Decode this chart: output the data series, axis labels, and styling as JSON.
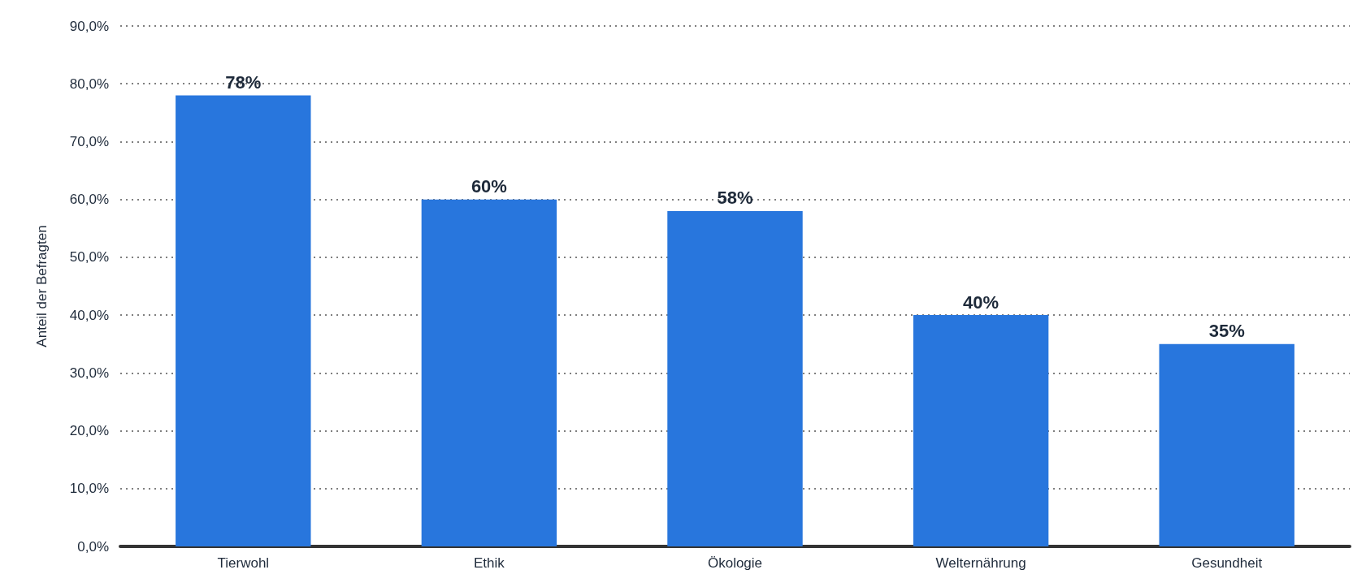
{
  "chart_data": {
    "type": "bar",
    "ylabel": "Anteil der Befragten",
    "categories": [
      "Tierwohl",
      "Ethik",
      "Ökologie",
      "Welternährung",
      "Gesundheit"
    ],
    "values": [
      78,
      60,
      58,
      40,
      35
    ],
    "value_labels": [
      "78%",
      "60%",
      "58%",
      "40%",
      "35%"
    ],
    "color": "#2876dd",
    "ylim": [
      0,
      90
    ],
    "yticks": [
      {
        "value": 0,
        "label": "0,0%"
      },
      {
        "value": 10,
        "label": "10,0%"
      },
      {
        "value": 20,
        "label": "20,0%"
      },
      {
        "value": 30,
        "label": "30,0%"
      },
      {
        "value": 40,
        "label": "40,0%"
      },
      {
        "value": 50,
        "label": "50,0%"
      },
      {
        "value": 60,
        "label": "60,0%"
      },
      {
        "value": 70,
        "label": "70,0%"
      },
      {
        "value": 80,
        "label": "80,0%"
      },
      {
        "value": 90,
        "label": "90,0%"
      }
    ],
    "grid": "y"
  }
}
